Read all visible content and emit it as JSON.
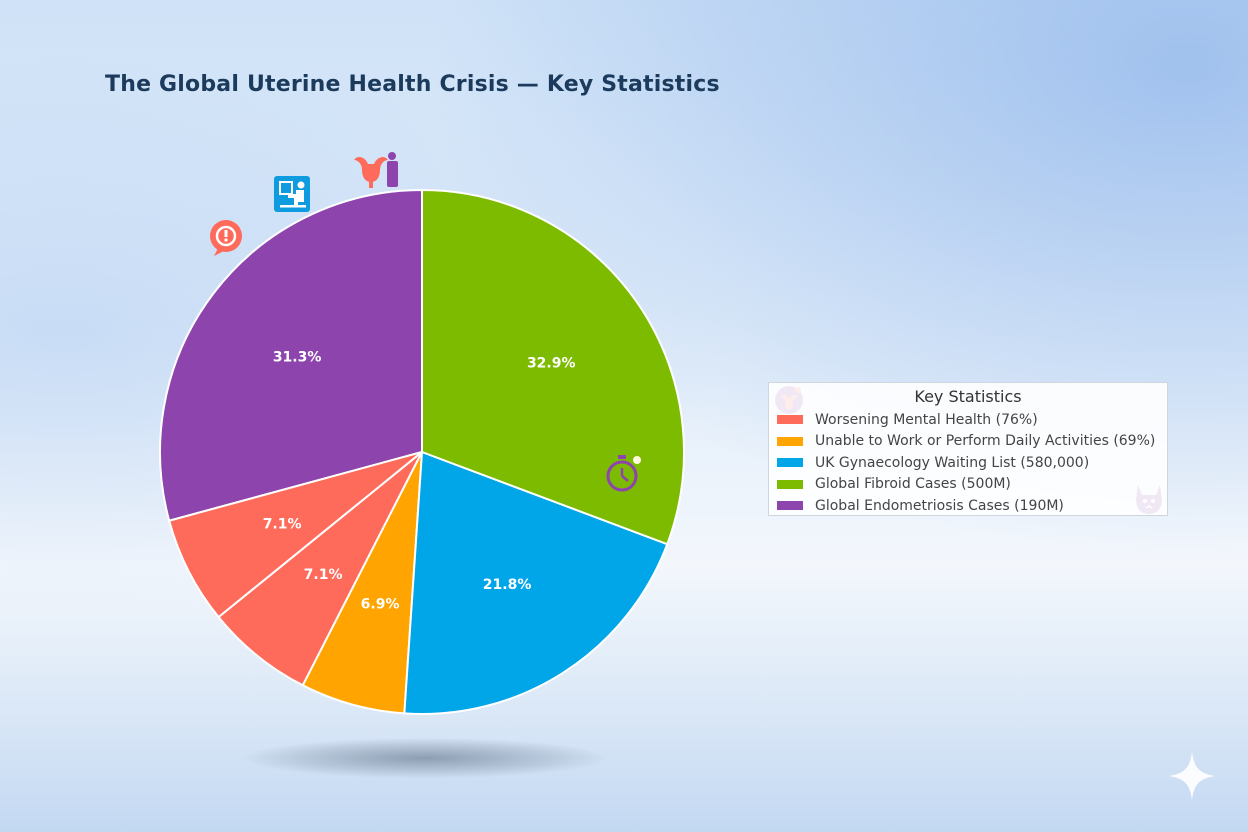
{
  "title": "The Global Uterine Health Crisis — Key Statistics",
  "chart_data": {
    "type": "pie",
    "title": "The Global Uterine Health Crisis — Key Statistics",
    "start_angle_deg": 90,
    "direction": "counterclockwise",
    "slices": [
      {
        "label": "Global Endometriosis Cases (190M)",
        "value": 31.3,
        "color": "#8e44ad"
      },
      {
        "label": "Worsening Mental Health (76%)",
        "value": 7.1,
        "color": "#ff6b5b",
        "legend": false
      },
      {
        "label": "Worsening Mental Health (76%)",
        "value": 7.1,
        "color": "#ff6b5b"
      },
      {
        "label": "Unable to Work or Perform Daily Activities (69%)",
        "value": 6.9,
        "color": "#ffa400"
      },
      {
        "label": "UK Gynaecology Waiting List (580,000)",
        "value": 21.8,
        "color": "#00a6e8"
      },
      {
        "label": "Global Fibroid Cases (500M)",
        "value": 32.9,
        "color": "#7dbb00"
      }
    ],
    "labels_format": "{value}%",
    "legend": {
      "title": "Key Statistics",
      "position": "right",
      "entries": [
        {
          "label": "Worsening Mental Health (76%)",
          "color": "#ff6b5b"
        },
        {
          "label": "Unable to Work or Perform Daily Activities (69%)",
          "color": "#ffa400"
        },
        {
          "label": "UK Gynaecology Waiting List (580,000)",
          "color": "#00a6e8"
        },
        {
          "label": "Global Fibroid Cases (500M)",
          "color": "#7dbb00"
        },
        {
          "label": "Global Endometriosis Cases (190M)",
          "color": "#8e44ad"
        }
      ]
    }
  },
  "icons": [
    "uterus-icon",
    "speech-bubble-icon",
    "waiting-room-icon",
    "stopwatch-icon",
    "cat-icon",
    "sparkle-icon"
  ]
}
